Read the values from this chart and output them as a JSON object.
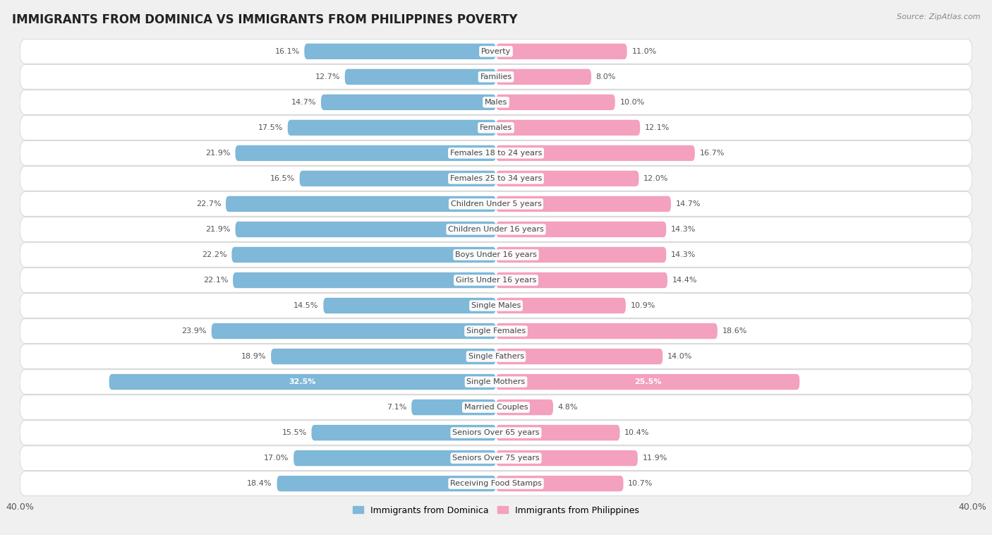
{
  "title": "IMMIGRANTS FROM DOMINICA VS IMMIGRANTS FROM PHILIPPINES POVERTY",
  "source": "Source: ZipAtlas.com",
  "categories": [
    "Poverty",
    "Families",
    "Males",
    "Females",
    "Females 18 to 24 years",
    "Females 25 to 34 years",
    "Children Under 5 years",
    "Children Under 16 years",
    "Boys Under 16 years",
    "Girls Under 16 years",
    "Single Males",
    "Single Females",
    "Single Fathers",
    "Single Mothers",
    "Married Couples",
    "Seniors Over 65 years",
    "Seniors Over 75 years",
    "Receiving Food Stamps"
  ],
  "dominica_values": [
    16.1,
    12.7,
    14.7,
    17.5,
    21.9,
    16.5,
    22.7,
    21.9,
    22.2,
    22.1,
    14.5,
    23.9,
    18.9,
    32.5,
    7.1,
    15.5,
    17.0,
    18.4
  ],
  "philippines_values": [
    11.0,
    8.0,
    10.0,
    12.1,
    16.7,
    12.0,
    14.7,
    14.3,
    14.3,
    14.4,
    10.9,
    18.6,
    14.0,
    25.5,
    4.8,
    10.4,
    11.9,
    10.7
  ],
  "dominica_color": "#7fb8d8",
  "philippines_color": "#f4a0bf",
  "background_color": "#f0f0f0",
  "row_color_even": "#ffffff",
  "row_color_odd": "#f7f7f7",
  "xlim": 40.0,
  "bar_height": 0.62,
  "title_fontsize": 12,
  "label_fontsize": 8,
  "value_fontsize": 8,
  "legend_label_dominica": "Immigrants from Dominica",
  "legend_label_philippines": "Immigrants from Philippines",
  "single_mothers_idx": 13
}
